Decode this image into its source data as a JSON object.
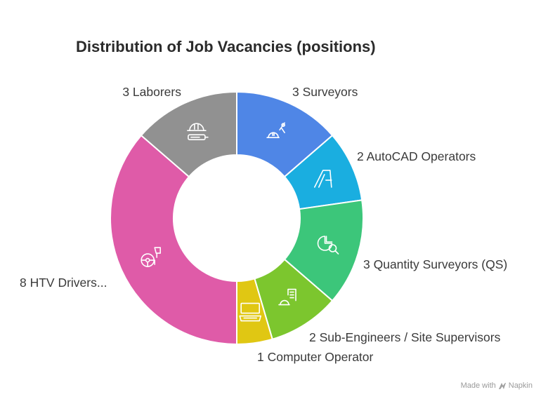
{
  "chart_data": {
    "type": "pie",
    "variant": "donut",
    "title": "Distribution of Job Vacancies (positions)",
    "slices": [
      {
        "label": "3 Surveyors",
        "value": 3,
        "color": "#4f86e6",
        "icon": "surveyor-helmet-compass-icon"
      },
      {
        "label": "2 AutoCAD Operators",
        "value": 2,
        "color": "#1aaee0",
        "icon": "autocad-logo-icon"
      },
      {
        "label": "3 Quantity Surveyors (QS)",
        "value": 3,
        "color": "#3cc67a",
        "icon": "chart-magnifier-icon"
      },
      {
        "label": "2 Sub-Engineers / Site Supervisors",
        "value": 2,
        "color": "#7cc62e",
        "icon": "helmet-building-icon"
      },
      {
        "label": "1 Computer Operator",
        "value": 1,
        "color": "#e0c713",
        "icon": "computer-icon"
      },
      {
        "label": "8 HTV Drivers...",
        "value": 8,
        "color": "#df5ba8",
        "icon": "steering-wheel-icon"
      },
      {
        "label": "3 Laborers",
        "value": 3,
        "color": "#919191",
        "icon": "helmet-tool-icon"
      }
    ],
    "legend": "none (labels placed around slices)"
  },
  "footer": {
    "made_with": "Made with",
    "brand": "Napkin"
  }
}
